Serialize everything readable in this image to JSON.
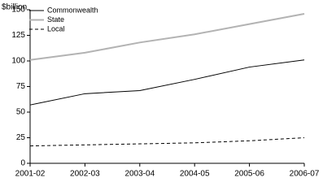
{
  "chart_data": {
    "type": "line",
    "ylabel": "$billion",
    "categories": [
      "2001-02",
      "2002-03",
      "2003-04",
      "2004-05",
      "2005-06",
      "2006-07"
    ],
    "series": [
      {
        "name": "Commonwealth",
        "color": "#000000",
        "linestyle": "solid",
        "values": [
          57,
          68,
          71,
          82,
          94,
          101
        ]
      },
      {
        "name": "State",
        "color": "#b3b3b3",
        "linestyle": "solid",
        "values": [
          101,
          108,
          118,
          126,
          136,
          146
        ]
      },
      {
        "name": "Local",
        "color": "#000000",
        "linestyle": "dashed",
        "values": [
          17,
          18,
          19,
          20,
          22,
          25
        ]
      }
    ],
    "ylim": [
      0,
      150
    ],
    "yticks": [
      0,
      25,
      50,
      75,
      100,
      125,
      150
    ],
    "grid": false,
    "legend": "upper left"
  }
}
